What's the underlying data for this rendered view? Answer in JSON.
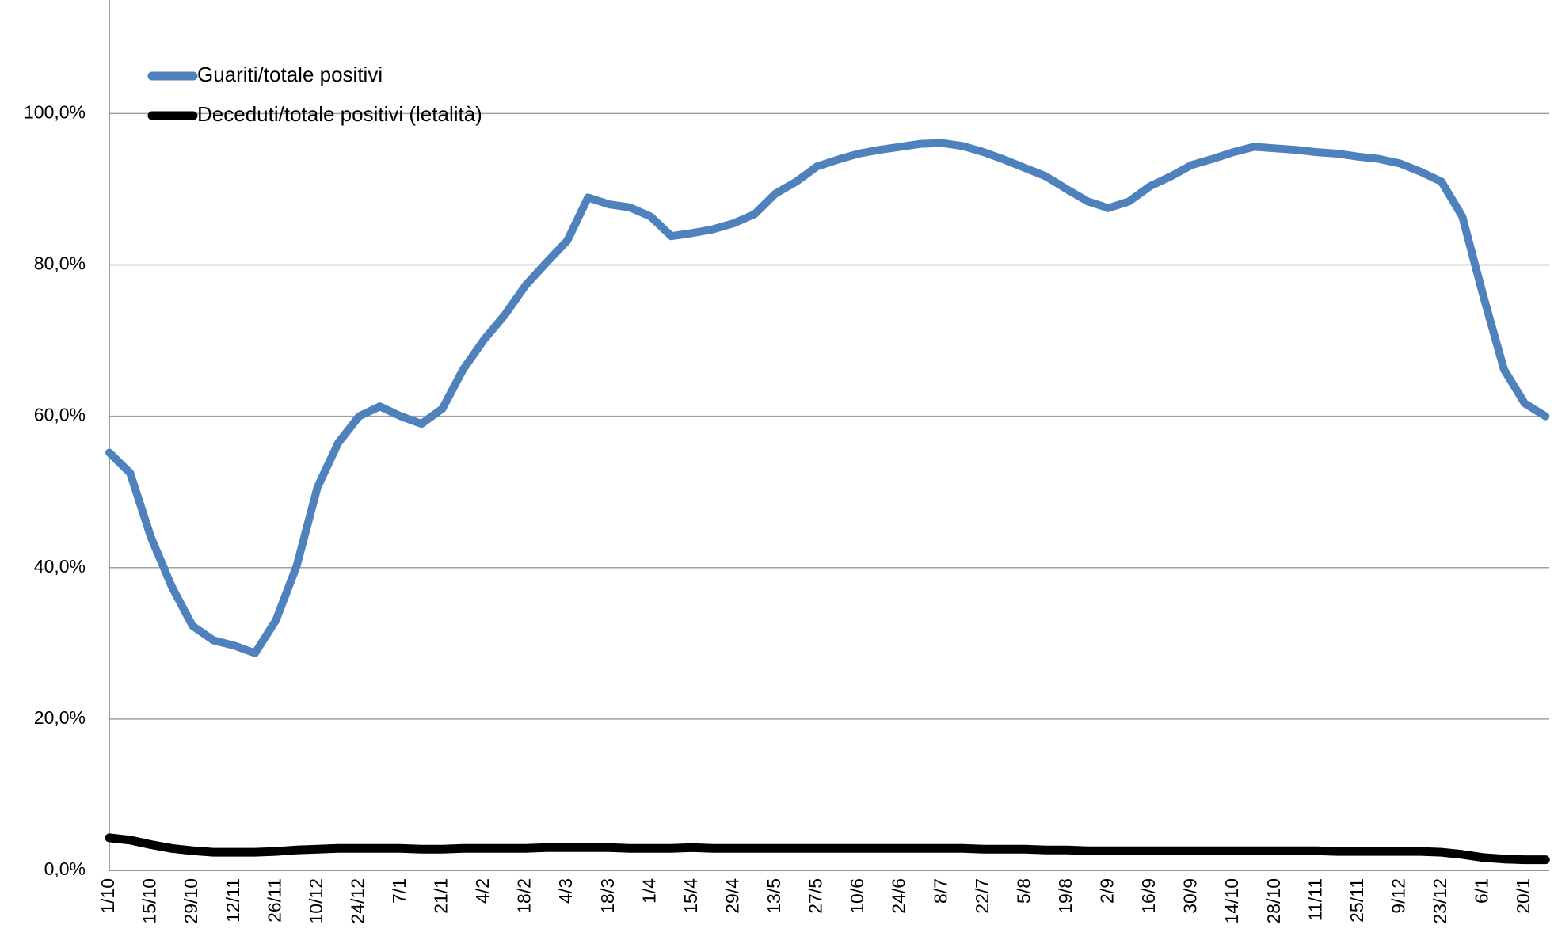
{
  "chart_data": {
    "type": "line",
    "categories": [
      "1/10",
      null,
      "15/10",
      null,
      "29/10",
      null,
      "12/11",
      null,
      "26/11",
      null,
      "10/12",
      null,
      "24/12",
      null,
      "7/1",
      null,
      "21/1",
      null,
      "4/2",
      null,
      "18/2",
      null,
      "4/3",
      null,
      "18/3",
      null,
      "1/4",
      null,
      "15/4",
      null,
      "29/4",
      null,
      "13/5",
      null,
      "27/5",
      null,
      "10/6",
      null,
      "24/6",
      null,
      "8/7",
      null,
      "22/7",
      null,
      "5/8",
      null,
      "19/8",
      null,
      "2/9",
      null,
      "16/9",
      null,
      "30/9",
      null,
      "14/10",
      null,
      "28/10",
      null,
      "11/11",
      null,
      "25/11",
      null,
      "9/12",
      null,
      "23/12",
      null,
      "6/1",
      null,
      "20/1",
      null
    ],
    "series": [
      {
        "name": "Guariti/totale positivi",
        "color": "#4f81bd",
        "values": [
          55.2,
          52.5,
          44,
          37.5,
          32.3,
          30.4,
          29.7,
          28.7,
          33,
          40.2,
          50.6,
          56.5,
          60,
          61.3,
          60,
          59,
          61,
          66.2,
          70.1,
          73.4,
          77.3,
          80.3,
          83.2,
          88.9,
          88,
          87.6,
          86.4,
          83.8,
          84.2,
          84.7,
          85.5,
          86.7,
          89.4,
          91,
          93,
          93.9,
          94.7,
          95.2,
          95.6,
          96,
          96.1,
          95.7,
          94.9,
          93.9,
          92.8,
          91.7,
          90,
          88.4,
          87.5,
          88.4,
          90.4,
          91.7,
          93.2,
          94,
          94.9,
          95.6,
          95.4,
          95.2,
          94.9,
          94.7,
          94.3,
          94,
          93.4,
          92.3,
          91,
          86.4,
          76,
          66.2,
          61.7,
          60
        ]
      },
      {
        "name": "Deceduti/totale positivi (letalità)",
        "color": "#000000",
        "values": [
          4.3,
          4,
          3.4,
          2.9,
          2.6,
          2.4,
          2.4,
          2.4,
          2.5,
          2.7,
          2.8,
          2.9,
          2.9,
          2.9,
          2.9,
          2.8,
          2.8,
          2.9,
          2.9,
          2.9,
          2.9,
          3,
          3,
          3,
          3,
          2.9,
          2.9,
          2.9,
          3,
          2.9,
          2.9,
          2.9,
          2.9,
          2.9,
          2.9,
          2.9,
          2.9,
          2.9,
          2.9,
          2.9,
          2.9,
          2.9,
          2.8,
          2.8,
          2.8,
          2.7,
          2.7,
          2.6,
          2.6,
          2.6,
          2.6,
          2.6,
          2.6,
          2.6,
          2.6,
          2.6,
          2.6,
          2.6,
          2.6,
          2.5,
          2.5,
          2.5,
          2.5,
          2.5,
          2.4,
          2.1,
          1.7,
          1.5,
          1.4,
          1.4
        ]
      }
    ],
    "ylim": [
      0,
      115
    ],
    "yticks": [
      {
        "value": 0,
        "label": "0,0%"
      },
      {
        "value": 20,
        "label": "20,0%"
      },
      {
        "value": 40,
        "label": "40,0%"
      },
      {
        "value": 60,
        "label": "60,0%"
      },
      {
        "value": 80,
        "label": "80,0%"
      },
      {
        "value": 100,
        "label": "100,0%"
      }
    ],
    "grid": true,
    "legend": "upper left"
  }
}
